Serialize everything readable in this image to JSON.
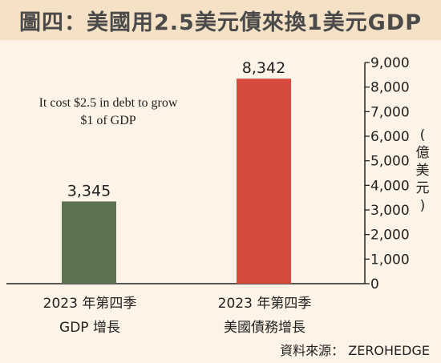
{
  "title_bar": {
    "figure_label": "圖四：",
    "title": "美國用2.5美元債來換1美元GDP"
  },
  "annotation": {
    "line1": "It cost $2.5 in debt to grow",
    "line2": "$1 of GDP"
  },
  "chart_data": {
    "type": "bar",
    "title": "美國用2.5美元債來換1美元GDP",
    "categories": [
      "2023 年第四季 GDP 增長",
      "2023 年第四季 美國債務增長"
    ],
    "category_lines": [
      [
        "2023 年第四季",
        "GDP 增長"
      ],
      [
        "2023 年第四季",
        "美國債務增長"
      ]
    ],
    "values": [
      3345,
      8342
    ],
    "value_labels": [
      "3,345",
      "8,342"
    ],
    "colors": [
      "#5b7350",
      "#d64a3f"
    ],
    "ylabel": "(億美元)",
    "ylabel_chars": [
      "(",
      "億",
      "美",
      "元",
      ")"
    ],
    "ylim": [
      0,
      9000
    ],
    "yticks": [
      "0",
      "1,000",
      "2,000",
      "3,000",
      "4,000",
      "5,000",
      "6,000",
      "7,000",
      "8,000",
      "9,000"
    ],
    "yaxis_position": "right",
    "grid": false
  },
  "source": "資料來源： ZEROHEDGE"
}
